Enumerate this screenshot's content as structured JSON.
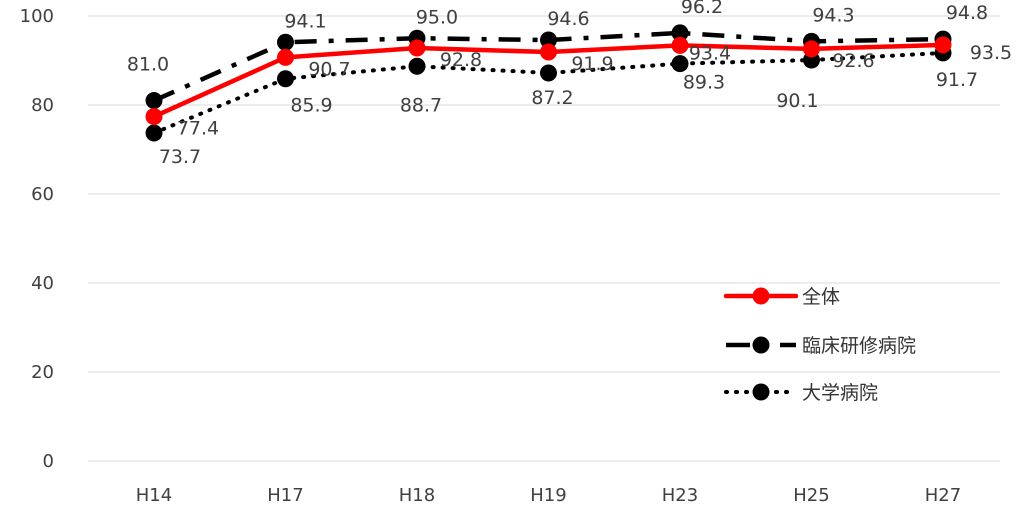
{
  "chart_data": {
    "type": "line",
    "categories": [
      "H14",
      "H17",
      "H18",
      "H19",
      "H23",
      "H25",
      "H27"
    ],
    "ylim": [
      0,
      100
    ],
    "yticks": [
      0,
      20,
      40,
      60,
      80,
      100
    ],
    "grid": true,
    "legend_position": "right",
    "series": [
      {
        "name": "全体",
        "values": [
          77.4,
          90.7,
          92.8,
          91.9,
          93.4,
          92.6,
          93.5
        ],
        "labels": [
          "77.4",
          "90.7",
          "92.8",
          "91.9",
          "93.4",
          "92.6",
          "93.5"
        ],
        "color": "#ff0000",
        "line_style": "solid"
      },
      {
        "name": "臨床研修病院",
        "values": [
          81.0,
          94.1,
          95.0,
          94.6,
          96.2,
          94.3,
          94.8
        ],
        "labels": [
          "81.0",
          "94.1",
          "95.0",
          "94.6",
          "96.2",
          "94.3",
          "94.8"
        ],
        "color": "#000000",
        "line_style": "dash-dot"
      },
      {
        "name": "大学病院",
        "values": [
          73.7,
          85.9,
          88.7,
          87.2,
          89.3,
          90.1,
          91.7
        ],
        "labels": [
          "73.7",
          "85.9",
          "88.7",
          "87.2",
          "89.3",
          "90.1",
          "91.7"
        ],
        "color": "#000000",
        "line_style": "dotted"
      }
    ]
  }
}
